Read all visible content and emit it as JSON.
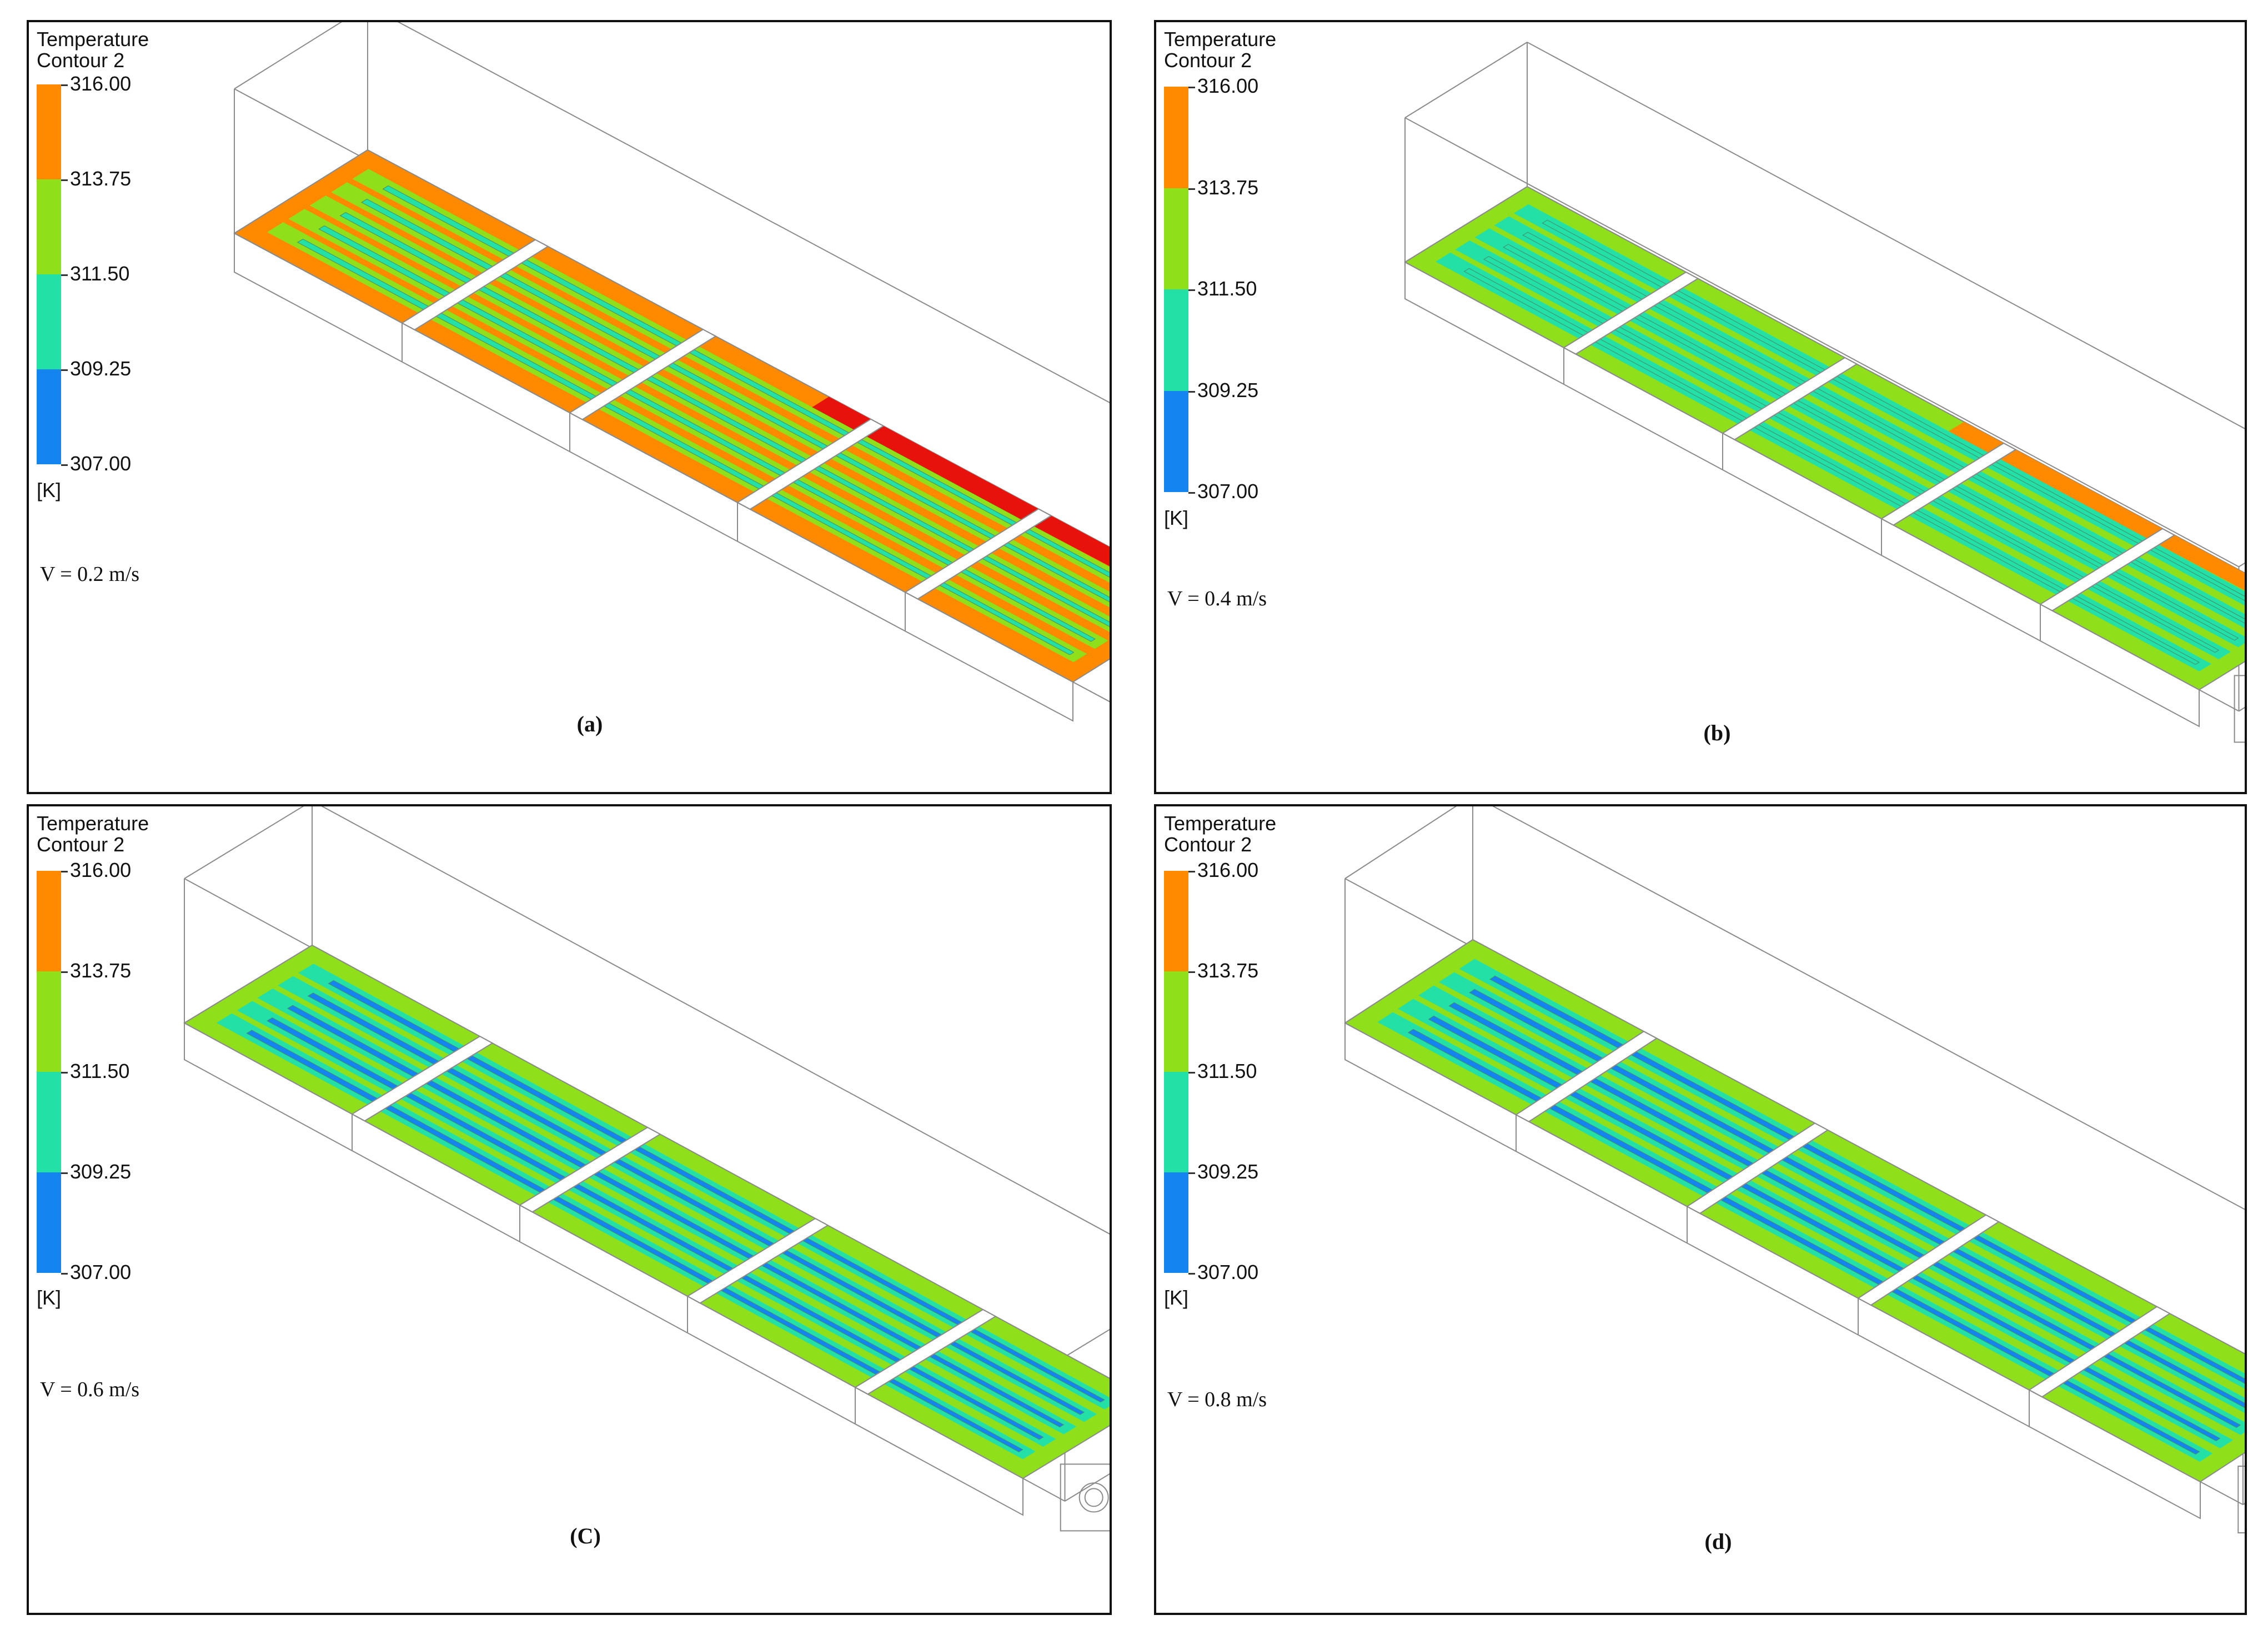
{
  "colors": {
    "orange": "#ff8a00",
    "red": "#e8120c",
    "lime": "#8fe01a",
    "teal": "#22e0a6",
    "blue": "#1484f0",
    "outline": "#8a8a8a"
  },
  "legend": {
    "title_line1": "Temperature",
    "title_line2": "Contour 2",
    "ticks": [
      "316.00",
      "313.75",
      "311.50",
      "309.25",
      "307.00"
    ],
    "unit": "[K]"
  },
  "panels": [
    {
      "id": "a",
      "velocity": "V = 0.2 m/s",
      "caption": "(a)",
      "bg": "orange",
      "channel": "lime",
      "core": "teal",
      "hot_edge": "red"
    },
    {
      "id": "b",
      "velocity": "V = 0.4 m/s",
      "caption": "(b)",
      "bg": "lime",
      "channel": "teal",
      "core": "teal",
      "hot_edge": "orange"
    },
    {
      "id": "c",
      "velocity": "V = 0.6 m/s",
      "caption": "(C)",
      "bg": "lime",
      "channel": "teal",
      "core": "blue",
      "hot_edge": ""
    },
    {
      "id": "d",
      "velocity": "V = 0.8 m/s",
      "caption": "(d)",
      "bg": "lime",
      "channel": "teal",
      "core": "blue",
      "hot_edge": ""
    }
  ]
}
